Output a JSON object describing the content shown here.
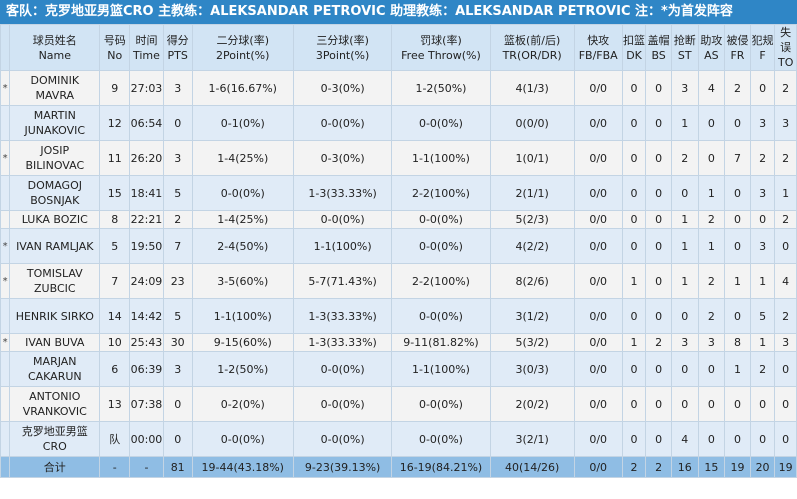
{
  "title": "客队：克罗地亚男篮CRO 主教练：ALEKSANDAR PETROVIC 助理教练：ALEKSANDAR PETROVIC 注：*为首发阵容",
  "headers": [
    {
      "cn": "",
      "en": ""
    },
    {
      "cn": "球员姓名",
      "en": "Name"
    },
    {
      "cn": "号码",
      "en": "No"
    },
    {
      "cn": "时间",
      "en": "Time"
    },
    {
      "cn": "得分",
      "en": "PTS"
    },
    {
      "cn": "二分球(率)",
      "en": "2Point(%)"
    },
    {
      "cn": "三分球(率)",
      "en": "3Point(%)"
    },
    {
      "cn": "罚球(率)",
      "en": "Free Throw(%)"
    },
    {
      "cn": "篮板(前/后)",
      "en": "TR(OR/DR)"
    },
    {
      "cn": "快攻",
      "en": "FB/FBA"
    },
    {
      "cn": "扣篮",
      "en": "DK"
    },
    {
      "cn": "盖帽",
      "en": "BS"
    },
    {
      "cn": "抢断",
      "en": "ST"
    },
    {
      "cn": "助攻",
      "en": "AS"
    },
    {
      "cn": "被侵",
      "en": "FR"
    },
    {
      "cn": "犯规",
      "en": "F"
    },
    {
      "cn": "失误",
      "en": "TO"
    }
  ],
  "rows": [
    [
      "*",
      "DOMINIK MAVRA",
      "9",
      "27:03",
      "3",
      "1-6(16.67%)",
      "0-3(0%)",
      "1-2(50%)",
      "4(1/3)",
      "0/0",
      "0",
      "0",
      "3",
      "4",
      "2",
      "0",
      "2"
    ],
    [
      "",
      "MARTIN JUNAKOVIC",
      "12",
      "06:54",
      "0",
      "0-1(0%)",
      "0-0(0%)",
      "0-0(0%)",
      "0(0/0)",
      "0/0",
      "0",
      "0",
      "1",
      "0",
      "0",
      "3",
      "3"
    ],
    [
      "*",
      "JOSIP BILINOVAC",
      "11",
      "26:20",
      "3",
      "1-4(25%)",
      "0-3(0%)",
      "1-1(100%)",
      "1(0/1)",
      "0/0",
      "0",
      "0",
      "2",
      "0",
      "7",
      "2",
      "2"
    ],
    [
      "",
      "DOMAGOJ BOSNJAK",
      "15",
      "18:41",
      "5",
      "0-0(0%)",
      "1-3(33.33%)",
      "2-2(100%)",
      "2(1/1)",
      "0/0",
      "0",
      "0",
      "0",
      "1",
      "0",
      "3",
      "1"
    ],
    [
      "",
      "LUKA BOZIC",
      "8",
      "22:21",
      "2",
      "1-4(25%)",
      "0-0(0%)",
      "0-0(0%)",
      "5(2/3)",
      "0/0",
      "0",
      "0",
      "1",
      "2",
      "0",
      "0",
      "2"
    ],
    [
      "*",
      "IVAN RAMLJAK",
      "5",
      "19:50",
      "7",
      "2-4(50%)",
      "1-1(100%)",
      "0-0(0%)",
      "4(2/2)",
      "0/0",
      "0",
      "0",
      "1",
      "1",
      "0",
      "3",
      "0"
    ],
    [
      "*",
      "TOMISLAV ZUBCIC",
      "7",
      "24:09",
      "23",
      "3-5(60%)",
      "5-7(71.43%)",
      "2-2(100%)",
      "8(2/6)",
      "0/0",
      "1",
      "0",
      "1",
      "2",
      "1",
      "1",
      "4"
    ],
    [
      "",
      "HENRIK SIRKO",
      "14",
      "14:42",
      "5",
      "1-1(100%)",
      "1-3(33.33%)",
      "0-0(0%)",
      "3(1/2)",
      "0/0",
      "0",
      "0",
      "0",
      "2",
      "0",
      "5",
      "2"
    ],
    [
      "*",
      "IVAN BUVA",
      "10",
      "25:43",
      "30",
      "9-15(60%)",
      "1-3(33.33%)",
      "9-11(81.82%)",
      "5(3/2)",
      "0/0",
      "1",
      "2",
      "3",
      "3",
      "8",
      "1",
      "3"
    ],
    [
      "",
      "MARJAN CAKARUN",
      "6",
      "06:39",
      "3",
      "1-2(50%)",
      "0-0(0%)",
      "1-1(100%)",
      "3(0/3)",
      "0/0",
      "0",
      "0",
      "0",
      "0",
      "1",
      "2",
      "0"
    ],
    [
      "",
      "ANTONIO VRANKOVIC",
      "13",
      "07:38",
      "0",
      "0-2(0%)",
      "0-0(0%)",
      "0-0(0%)",
      "2(0/2)",
      "0/0",
      "0",
      "0",
      "0",
      "0",
      "0",
      "0",
      "0"
    ],
    [
      "",
      "克罗地亚男篮 CRO",
      "队",
      "00:00",
      "0",
      "0-0(0%)",
      "0-0(0%)",
      "0-0(0%)",
      "3(2/1)",
      "0/0",
      "0",
      "0",
      "4",
      "0",
      "0",
      "0",
      "0"
    ]
  ],
  "total": [
    "",
    "合计",
    "-",
    "-",
    "81",
    "19-44(43.18%)",
    "9-23(39.13%)",
    "16-19(84.21%)",
    "40(14/26)",
    "0/0",
    "2",
    "2",
    "16",
    "15",
    "19",
    "20",
    "19"
  ]
}
